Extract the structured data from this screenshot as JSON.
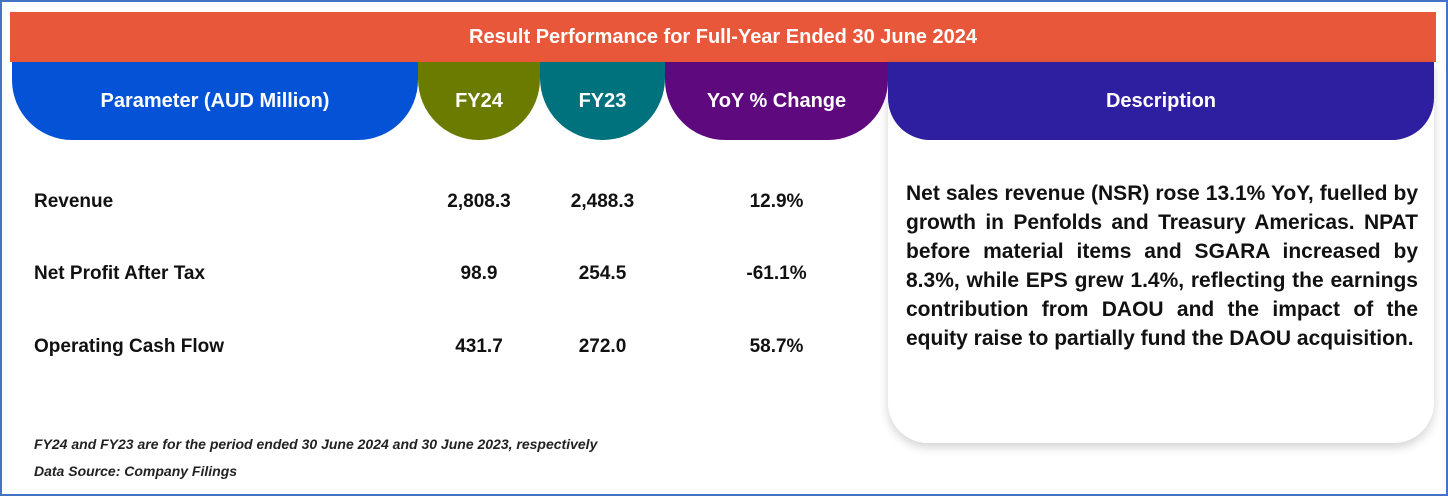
{
  "title": "Result Performance for Full-Year Ended 30 June 2024",
  "headers": {
    "parameter": "Parameter (AUD Million)",
    "fy24": "FY24",
    "fy23": "FY23",
    "yoy": "YoY % Change",
    "description": "Description"
  },
  "rows": [
    {
      "label": "Revenue",
      "fy24": "2,808.3",
      "fy23": "2,488.3",
      "yoy": "12.9%"
    },
    {
      "label": "Net Profit After Tax",
      "fy24": "98.9",
      "fy23": "254.5",
      "yoy": "-61.1%"
    },
    {
      "label": "Operating Cash Flow",
      "fy24": "431.7",
      "fy23": "272.0",
      "yoy": "58.7%"
    }
  ],
  "description": "Net sales revenue (NSR) rose 13.1% YoY, fuelled by growth in Penfolds and Treasury Americas. NPAT before material items and SGARA increased by 8.3%, while EPS grew 1.4%, reflecting the earnings contribution from DAOU and the impact of the equity raise to partially fund the DAOU acquisition.",
  "footnotes": {
    "period": "FY24 and FY23 are for the period ended 30 June 2024 and 30 June 2023, respectively",
    "source": "Data Source: Company Filings"
  },
  "colors": {
    "title_bar": "#E8573A",
    "parameter": "#0452D6",
    "fy24": "#6B7B00",
    "fy23": "#00727E",
    "yoy": "#5E0A7E",
    "description": "#2E1EA0"
  }
}
